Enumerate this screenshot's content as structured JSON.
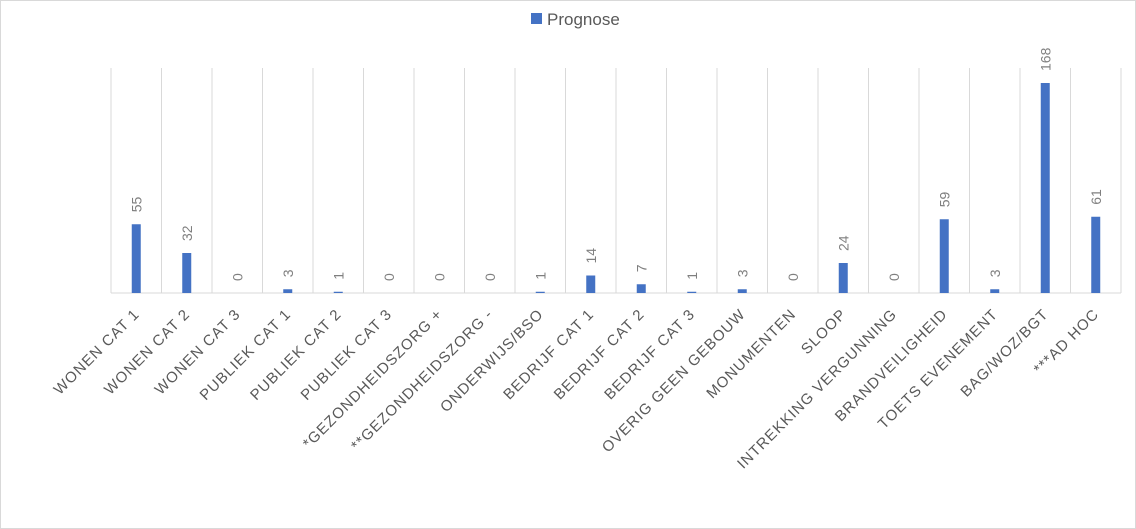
{
  "chart_data": {
    "type": "bar",
    "title": "",
    "xlabel": "",
    "ylabel": "",
    "legend": "top-center",
    "grid": "vertical",
    "ylim": [
      0,
      180
    ],
    "categories": [
      "WONEN CAT 1",
      "WONEN CAT 2",
      "WONEN CAT 3",
      "PUBLIEK CAT 1",
      "PUBLIEK CAT 2",
      "PUBLIEK CAT 3",
      "*GEZONDHEIDSZORG +",
      "**GEZONDHEIDSZORG -",
      "ONDERWIJS/BSO",
      "BEDRIJF CAT 1",
      "BEDRIJF CAT 2",
      "BEDRIJF CAT 3",
      "OVERIG GEEN GEBOUW",
      "MONUMENTEN",
      "SLOOP",
      "INTREKKING VERGUNNING",
      "BRANDVEILIGHEID",
      "TOETS EVENEMENT",
      "BAG/WOZ/BGT",
      "***AD HOC"
    ],
    "series": [
      {
        "name": "Prognose",
        "color": "#4472c4",
        "values": [
          55,
          32,
          0,
          3,
          1,
          0,
          0,
          0,
          1,
          14,
          7,
          1,
          3,
          0,
          24,
          0,
          59,
          3,
          168,
          61
        ]
      }
    ]
  }
}
